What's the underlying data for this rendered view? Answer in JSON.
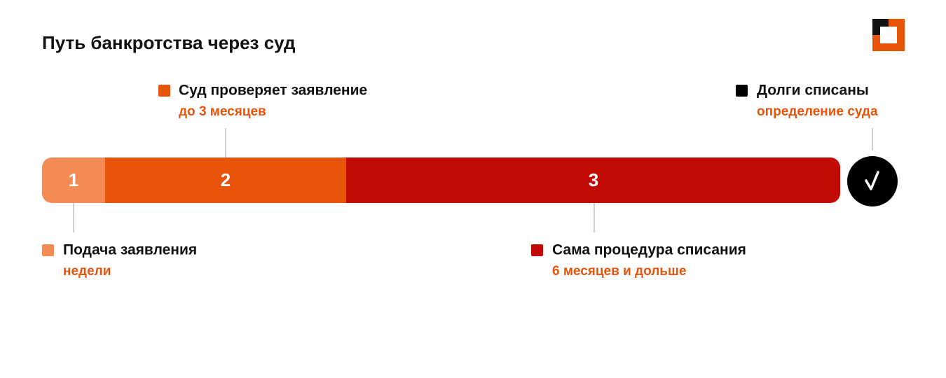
{
  "title": "Путь банкротства через суд",
  "steps": [
    {
      "number": "1",
      "label": "Подача заявления",
      "duration": "недели"
    },
    {
      "number": "2",
      "label": "Суд проверяет заявление",
      "duration": "до 3 месяцев"
    },
    {
      "number": "3",
      "label": "Сама процедура списания",
      "duration": "6 месяцев и дольше"
    }
  ],
  "final": {
    "label": "Долги списаны",
    "duration": "определение суда"
  }
}
